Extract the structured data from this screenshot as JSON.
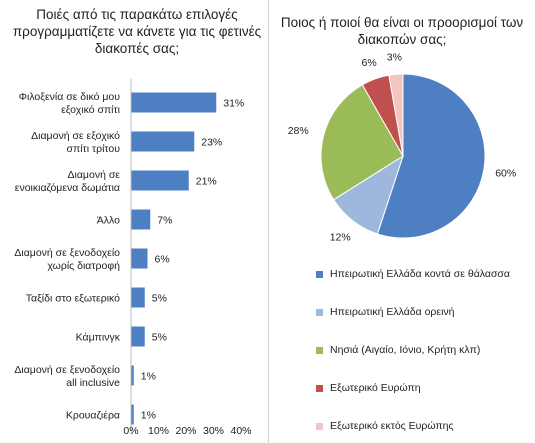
{
  "bar_title": "Ποιές από τις παρακάτω επιλογές προγραμματίζετε να κάνετε για τις φετινές διακοπές σας;",
  "pie_title": "Ποιος ή ποιοί θα είναι οι προορισμοί των διακοπών σας;",
  "colors": {
    "bar": "#4f7fc3",
    "axis": "#bbbbbb"
  },
  "chart_data": [
    {
      "type": "bar",
      "orientation": "horizontal",
      "title": "Ποιές από τις παρακάτω επιλογές προγραμματίζετε να κάνετε για τις φετινές διακοπές σας;",
      "categories": [
        "Φιλοξενία σε δικό μου εξοχικό σπίτι",
        "Διαμονή σε εξοχικό σπίτι τρίτου",
        "Διαμονή σε ενοικιαζόμενα δωμάτια",
        "Άλλο",
        "Διαμονή σε ξενοδοχείο χωρίς διατροφή",
        "Ταξίδι στο εξωτερικό",
        "Κάμπινγκ",
        "Διαμονή σε ξενοδοχείο all inclusive",
        "Κρουαζιέρα"
      ],
      "values": [
        31,
        23,
        21,
        7,
        6,
        5,
        5,
        1,
        1
      ],
      "value_labels": [
        "31%",
        "23%",
        "21%",
        "7%",
        "6%",
        "5%",
        "5%",
        "1%",
        "1%"
      ],
      "xlim": [
        0,
        40
      ],
      "xticks": [
        "0%",
        "10%",
        "20%",
        "30%",
        "40%"
      ],
      "grid": false
    },
    {
      "type": "pie",
      "title": "Ποιος ή ποιοί θα είναι οι προορισμοί των διακοπών σας;",
      "slices": [
        {
          "label": "Ηπειρωτική Ελλάδα κοντά σε θάλασσα",
          "value": 60,
          "value_label": "60%",
          "color": "#4f7fc3"
        },
        {
          "label": "Ηπειρωτική Ελλάδα ορεινή",
          "value": 12,
          "value_label": "12%",
          "color": "#9db8dc"
        },
        {
          "label": "Νησιά (Αιγαίο, Ιόνιο, Κρήτη κλπ)",
          "value": 28,
          "value_label": "28%",
          "color": "#9bbb59"
        },
        {
          "label": "Εξωτερικό Ευρώπη",
          "value": 6,
          "value_label": "6%",
          "color": "#c0504d"
        },
        {
          "label": "Εξωτερικό εκτός Ευρώπης",
          "value": 3,
          "value_label": "3%",
          "color": "#f2c4c4"
        }
      ],
      "legend_position": "bottom"
    }
  ]
}
